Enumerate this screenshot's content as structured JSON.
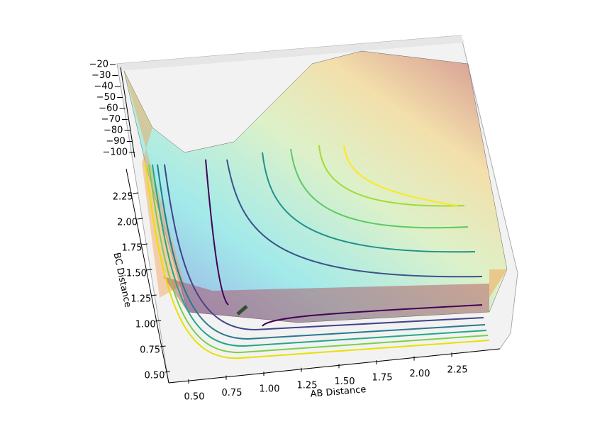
{
  "chart_data": {
    "type": "surface3d",
    "x_label": "AB Distance",
    "y_label": "BC Distance",
    "xlim": [
      0.4,
      2.4
    ],
    "ylim": [
      0.4,
      2.4
    ],
    "zlim": [
      -100,
      -20
    ],
    "xticks": [
      {
        "value": 0.5,
        "label": "0.50"
      },
      0.75,
      {
        "value": 1.0,
        "label": "1.00"
      },
      1.25,
      {
        "value": 1.5,
        "label": "1.50"
      },
      1.75,
      {
        "value": 2.0,
        "label": "2.00"
      },
      2.25
    ],
    "yticks": [
      {
        "value": 0.5,
        "label": "0.50"
      },
      0.75,
      {
        "value": 1.0,
        "label": "1.00"
      },
      1.25,
      {
        "value": 1.5,
        "label": "1.50"
      },
      1.75,
      {
        "value": 2.0,
        "label": "2.00"
      },
      2.25
    ],
    "zticks": [
      {
        "value": -20,
        "label": "−20"
      },
      {
        "value": -30,
        "label": "−30"
      },
      {
        "value": -40,
        "label": "−40"
      },
      {
        "value": -50,
        "label": "−50"
      },
      {
        "value": -60,
        "label": "−60"
      },
      {
        "value": -70,
        "label": "−70"
      },
      {
        "value": -80,
        "label": "−80"
      },
      {
        "value": -90,
        "label": "−90"
      },
      {
        "value": -100,
        "label": "−100"
      }
    ]
  }
}
